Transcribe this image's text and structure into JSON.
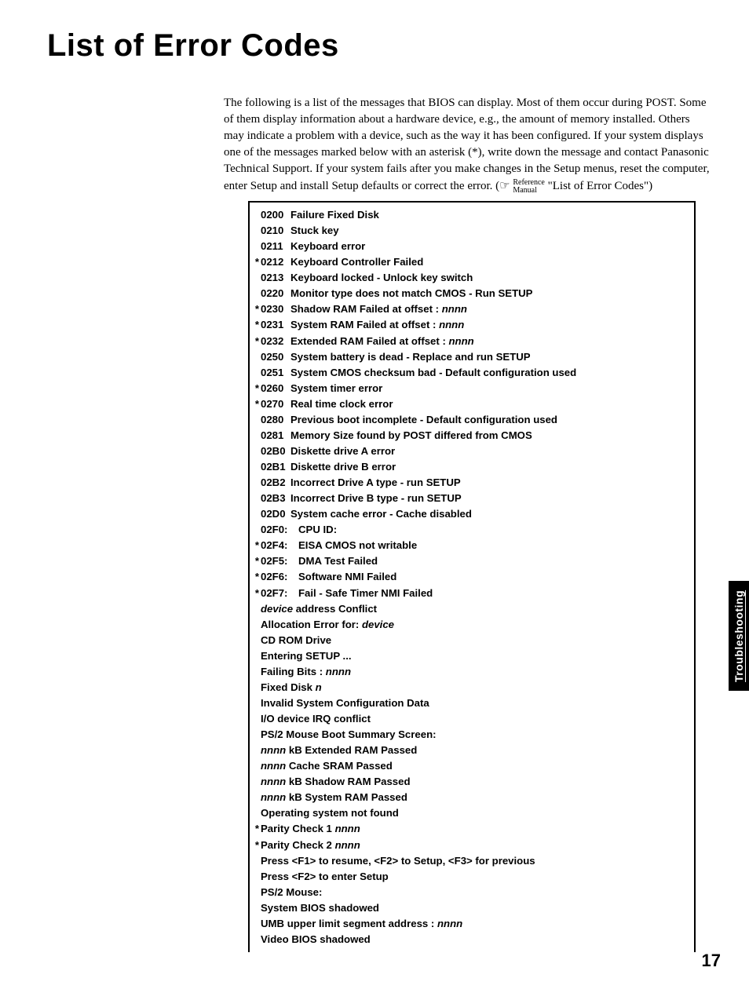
{
  "title": "List of Error Codes",
  "intro": "The following is a list of the messages that BIOS can display. Most of them occur during POST. Some of them display information about a hardware device, e.g., the amount of memory installed. Others may indicate a problem with a device, such as the way it has been configured. If your system displays one of the messages marked below with an asterisk (*), write down the message and contact Panasonic Technical Support. If your system fails after you make changes in the Setup menus, reset the computer, enter Setup and install Setup defaults or correct the error. (",
  "ref_symbol": "☞",
  "ref_line1": "Reference",
  "ref_line2": "Manual",
  "intro_tail": " \"List of Error Codes\")",
  "side_tab": "Troubleshooting",
  "page_number": "17",
  "codes": [
    {
      "star": "",
      "code": "0200",
      "desc": "Failure Fixed Disk"
    },
    {
      "star": "",
      "code": "0210",
      "desc": "Stuck key"
    },
    {
      "star": "",
      "code": "0211",
      "desc": "Keyboard error"
    },
    {
      "star": "*",
      "code": "0212",
      "desc": "Keyboard Controller Failed"
    },
    {
      "star": "",
      "code": "0213",
      "desc": "Keyboard locked - Unlock key switch"
    },
    {
      "star": "",
      "code": "0220",
      "desc": "Monitor type does not match CMOS - Run SETUP"
    },
    {
      "star": "*",
      "code": "0230",
      "desc": "Shadow RAM Failed at offset : ",
      "suffix_italic": "nnnn"
    },
    {
      "star": "*",
      "code": "0231",
      "desc": "System RAM Failed at offset : ",
      "suffix_italic": "nnnn"
    },
    {
      "star": "*",
      "code": "0232",
      "desc": "Extended RAM Failed at offset : ",
      "suffix_italic": "nnnn"
    },
    {
      "star": "",
      "code": "0250",
      "desc": "System battery is dead - Replace and run SETUP"
    },
    {
      "star": "",
      "code": "0251",
      "desc": "System CMOS checksum bad - Default configuration used"
    },
    {
      "star": "*",
      "code": "0260",
      "desc": "System timer error"
    },
    {
      "star": "*",
      "code": "0270",
      "desc": "Real time clock error"
    },
    {
      "star": "",
      "code": "0280",
      "desc": "Previous boot incomplete - Default configuration used"
    },
    {
      "star": "",
      "code": "0281",
      "desc": "Memory Size found by POST differed from CMOS"
    },
    {
      "star": "",
      "code": "02B0",
      "desc": "Diskette drive A error"
    },
    {
      "star": "",
      "code": "02B1",
      "desc": "Diskette drive B error"
    },
    {
      "star": "",
      "code": "02B2",
      "desc": "Incorrect Drive A type - run SETUP"
    },
    {
      "star": "",
      "code": "02B3",
      "desc": "Incorrect Drive B type - run SETUP"
    },
    {
      "star": "",
      "code": "02D0",
      "desc": "System cache error - Cache disabled"
    },
    {
      "star": "",
      "code": "02F0:",
      "wide": true,
      "desc": "CPU ID:"
    },
    {
      "star": "*",
      "code": "02F4:",
      "wide": true,
      "desc": "EISA CMOS not writable"
    },
    {
      "star": "*",
      "code": "02F5:",
      "wide": true,
      "desc": "DMA Test Failed"
    },
    {
      "star": "*",
      "code": "02F6:",
      "wide": true,
      "desc": "Software NMI Failed"
    },
    {
      "star": "*",
      "code": "02F7:",
      "wide": true,
      "desc": "Fail - Safe Timer NMI Failed"
    }
  ],
  "msgs": [
    {
      "star": "",
      "prefix_italic": "device",
      "desc": " address Conflict"
    },
    {
      "star": "",
      "desc": "Allocation Error for: ",
      "suffix_italic": "device"
    },
    {
      "star": "",
      "desc": "CD ROM Drive"
    },
    {
      "star": "",
      "desc": "Entering SETUP ..."
    },
    {
      "star": "",
      "desc": "Failing Bits : ",
      "suffix_italic": "nnnn"
    },
    {
      "star": "",
      "desc": "Fixed Disk ",
      "suffix_italic": "n"
    },
    {
      "star": "",
      "desc": "Invalid System Configuration Data"
    },
    {
      "star": "",
      "desc": "I/O device IRQ conflict"
    },
    {
      "star": "",
      "desc": "PS/2 Mouse Boot Summary Screen:"
    },
    {
      "star": "",
      "prefix_italic": "nnnn",
      "desc": " kB Extended RAM Passed"
    },
    {
      "star": "",
      "prefix_italic": "nnnn",
      "desc": " Cache SRAM Passed"
    },
    {
      "star": "",
      "prefix_italic": "nnnn",
      "desc": " kB Shadow RAM Passed"
    },
    {
      "star": "",
      "prefix_italic": "nnnn",
      "desc": " kB System RAM Passed"
    },
    {
      "star": "",
      "desc": "Operating system not found"
    },
    {
      "star": "*",
      "desc": "Parity Check 1 ",
      "suffix_italic": "nnnn"
    },
    {
      "star": "*",
      "desc": "Parity Check 2 ",
      "suffix_italic": "nnnn"
    },
    {
      "star": "",
      "desc": "Press <F1> to resume, <F2> to Setup, <F3> for previous"
    },
    {
      "star": "",
      "desc": "Press <F2> to enter Setup"
    },
    {
      "star": "",
      "desc": "PS/2 Mouse:"
    },
    {
      "star": "",
      "desc": "System BIOS shadowed"
    },
    {
      "star": "",
      "desc": "UMB upper limit segment address : ",
      "suffix_italic": "nnnn"
    },
    {
      "star": "",
      "desc": "Video BIOS shadowed"
    }
  ]
}
